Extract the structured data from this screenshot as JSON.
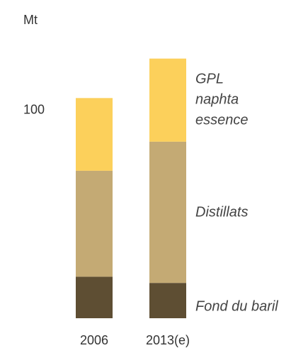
{
  "chart_data": {
    "type": "bar",
    "stacked": true,
    "y_axis_label": "Mt",
    "categories": [
      "2006",
      "2013(e)"
    ],
    "series": [
      {
        "name": "Fond du baril",
        "color": "#5e4e33",
        "values": [
          20,
          17
        ]
      },
      {
        "name": "Distillats",
        "color": "#c4aa74",
        "values": [
          51,
          68
        ]
      },
      {
        "name": "GPL naphta essence",
        "color": "#fcd05b",
        "values": [
          35,
          40
        ]
      }
    ],
    "ylim": [
      0,
      130
    ],
    "yticks": [
      100
    ],
    "grid": false
  }
}
